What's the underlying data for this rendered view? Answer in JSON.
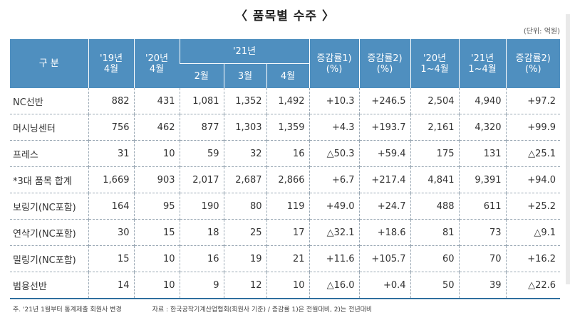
{
  "title": "〈 품목별 수주 〉",
  "unit": "(단위: 억원)",
  "header": {
    "category": "구 분",
    "c1": "'19년\n4월",
    "c2": "'20년\n4월",
    "group21": "'21년",
    "m2": "2월",
    "m3": "3월",
    "m4": "4월",
    "chg1": "증감률1)\n(%)",
    "chg2": "증감률2)\n(%)",
    "c20": "'20년\n1~4월",
    "c21": "'21년\n1~4월",
    "chg3": "증감률2)\n(%)"
  },
  "rows": [
    {
      "label": "NC선반",
      "v": [
        "882",
        "431",
        "1,081",
        "1,352",
        "1,492",
        "+10.3",
        "+246.5",
        "2,504",
        "4,940",
        "+97.2"
      ]
    },
    {
      "label": "머시닝센터",
      "v": [
        "756",
        "462",
        "877",
        "1,303",
        "1,359",
        "+4.3",
        "+193.7",
        "2,161",
        "4,320",
        "+99.9"
      ]
    },
    {
      "label": "프레스",
      "v": [
        "31",
        "10",
        "59",
        "32",
        "16",
        "△50.3",
        "+59.4",
        "175",
        "131",
        "△25.1"
      ]
    },
    {
      "label": "*3대 품목 합계",
      "v": [
        "1,669",
        "903",
        "2,017",
        "2,687",
        "2,866",
        "+6.7",
        "+217.4",
        "4,841",
        "9,391",
        "+94.0"
      ]
    },
    {
      "label": "보링기(NC포함)",
      "v": [
        "164",
        "95",
        "190",
        "80",
        "119",
        "+49.0",
        "+24.7",
        "488",
        "611",
        "+25.2"
      ]
    },
    {
      "label": "연삭기(NC포함)",
      "v": [
        "30",
        "15",
        "18",
        "25",
        "17",
        "△32.1",
        "+18.6",
        "81",
        "73",
        "△9.1"
      ]
    },
    {
      "label": "밀링기(NC포함)",
      "v": [
        "15",
        "10",
        "16",
        "19",
        "21",
        "+11.6",
        "+105.7",
        "60",
        "70",
        "+16.2"
      ]
    },
    {
      "label": "범용선반",
      "v": [
        "14",
        "10",
        "9",
        "12",
        "10",
        "△16.0",
        "+0.4",
        "50",
        "39",
        "△22.6"
      ]
    }
  ],
  "footer": {
    "note": "주. '21년 1월부터 통계제출 회원사 변경",
    "source": "자료 : 한국공작기계산업협회(회원사 기준) / 증감률 1)은 전월대비, 2)는 전년대비"
  },
  "colors": {
    "header_bg": "#4f8fbf",
    "rule": "#2f6f9f"
  }
}
